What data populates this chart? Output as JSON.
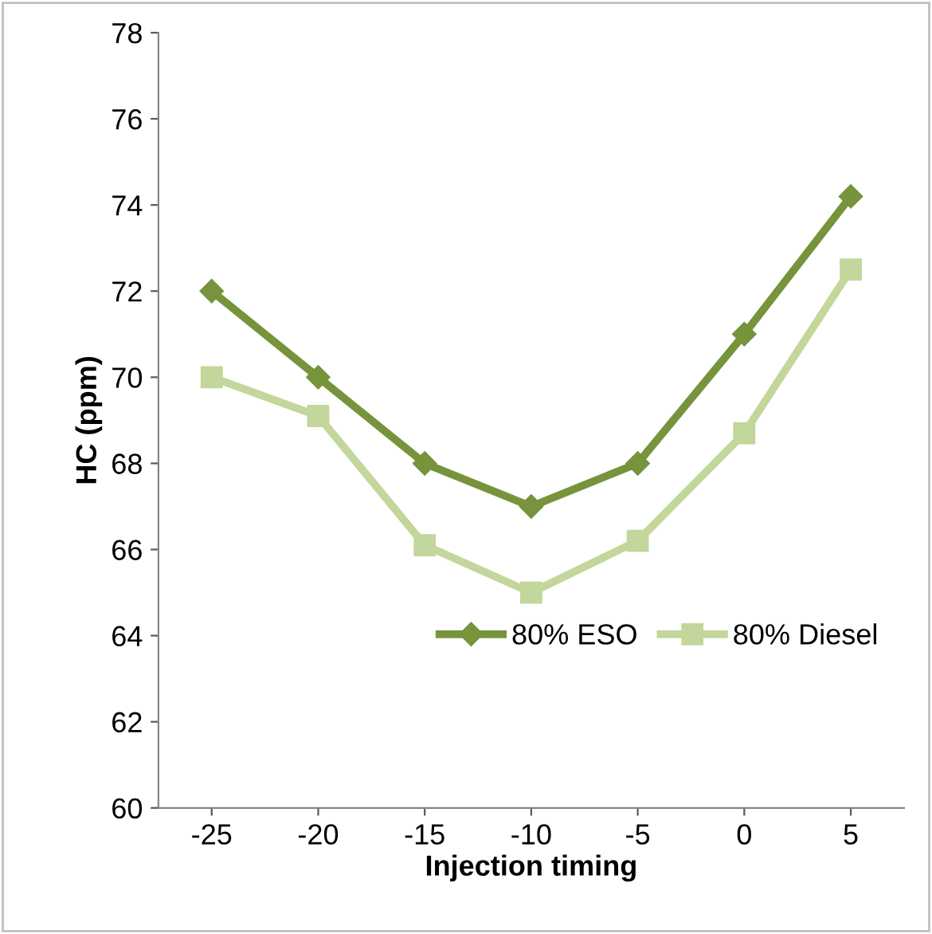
{
  "chart_data": {
    "type": "line",
    "xlabel": "Injection timing",
    "ylabel": "HC (ppm)",
    "categories": [
      "-25",
      "-20",
      "-15",
      "-10",
      "-5",
      "0",
      "5"
    ],
    "series": [
      {
        "name": "80% ESO",
        "color": "#77933c",
        "marker": "diamond",
        "values": [
          72,
          70,
          68,
          67,
          68,
          71,
          74.2
        ]
      },
      {
        "name": "80% Diesel",
        "color": "#c3d69b",
        "marker": "square",
        "values": [
          70,
          69.1,
          66.1,
          65,
          66.2,
          68.7,
          72.5
        ]
      }
    ],
    "ylim": [
      60,
      78
    ],
    "yticks": [
      60,
      62,
      64,
      66,
      68,
      70,
      72,
      74,
      76,
      78
    ],
    "grid": false,
    "legend": "lower right",
    "line_style": "solid"
  }
}
